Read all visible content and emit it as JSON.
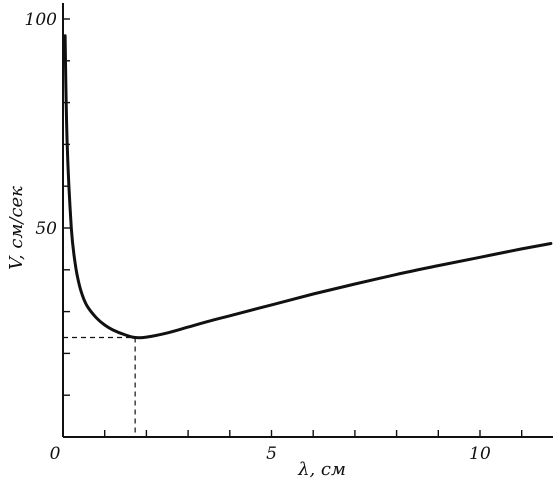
{
  "chart_data": {
    "type": "line",
    "title": "",
    "xlabel": "λ, см",
    "ylabel": "V, см/сек",
    "xlim": [
      0,
      11.8
    ],
    "ylim": [
      0,
      100
    ],
    "x_ticks": [
      0,
      1,
      2,
      3,
      4,
      5,
      6,
      7,
      8,
      9,
      10,
      11
    ],
    "x_tick_labels": [
      {
        "value": 0,
        "label": "0"
      },
      {
        "value": 5,
        "label": "5"
      },
      {
        "value": 10,
        "label": "10"
      }
    ],
    "y_ticks": [
      0,
      10,
      20,
      30,
      40,
      50,
      60,
      70,
      80,
      90,
      100
    ],
    "y_tick_labels": [
      {
        "value": 50,
        "label": "50"
      },
      {
        "value": 100,
        "label": "100"
      }
    ],
    "grid": false,
    "legend": "none",
    "series": [
      {
        "x": [
          0.05,
          0.1,
          0.2,
          0.3,
          0.4,
          0.5,
          0.6,
          0.8,
          1.0,
          1.2,
          1.5,
          1.73,
          2.0,
          2.5,
          3.0,
          3.5,
          4.0,
          5.0,
          6.0,
          7.0,
          8.0,
          9.0,
          10.0,
          11.0,
          11.7
        ],
        "y": [
          96,
          70,
          50,
          41,
          36,
          33,
          31,
          28.5,
          26.8,
          25.6,
          24.4,
          23.8,
          23.9,
          24.9,
          26.3,
          27.7,
          29.0,
          31.6,
          34.2,
          36.6,
          38.9,
          41.0,
          43.0,
          45.0,
          46.3
        ]
      }
    ],
    "annotations": {
      "minimum": {
        "x": 1.73,
        "y": 23.8
      }
    },
    "colors": {
      "ink": "#111111",
      "background": "#ffffff"
    }
  }
}
